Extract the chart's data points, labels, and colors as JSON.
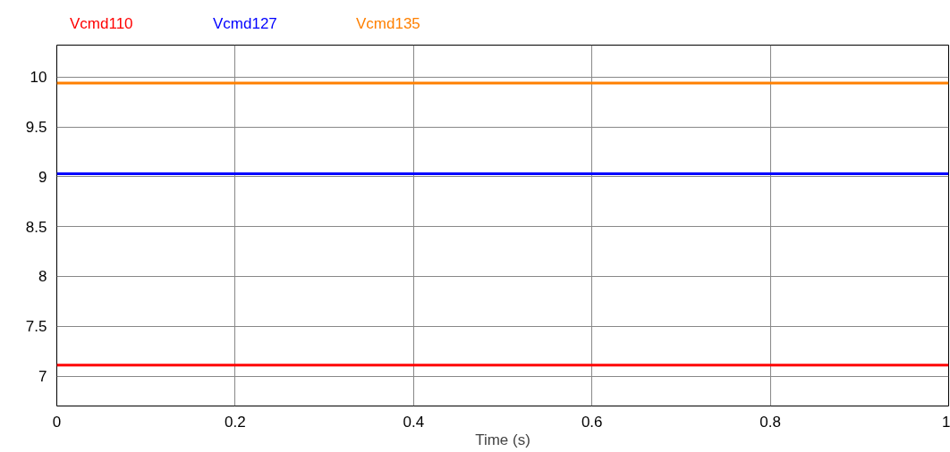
{
  "chart_data": {
    "type": "line",
    "xlabel": "Time (s)",
    "x": [
      0,
      1
    ],
    "xlim": [
      0,
      1
    ],
    "xticks": [
      0,
      0.2,
      0.4,
      0.6,
      0.8,
      1
    ],
    "ylim": [
      6.7,
      10.32
    ],
    "yticks": [
      7,
      7.5,
      8,
      8.5,
      9,
      9.5,
      10
    ],
    "grid": true,
    "line_style": "solid",
    "marker": "none",
    "series": [
      {
        "name": "Vcmd110",
        "color": "#ff0000",
        "values": [
          7.11,
          7.11
        ]
      },
      {
        "name": "Vcmd127",
        "color": "#0000ff",
        "values": [
          9.03,
          9.03
        ]
      },
      {
        "name": "Vcmd135",
        "color": "#ff8000",
        "values": [
          9.94,
          9.94
        ]
      }
    ]
  }
}
